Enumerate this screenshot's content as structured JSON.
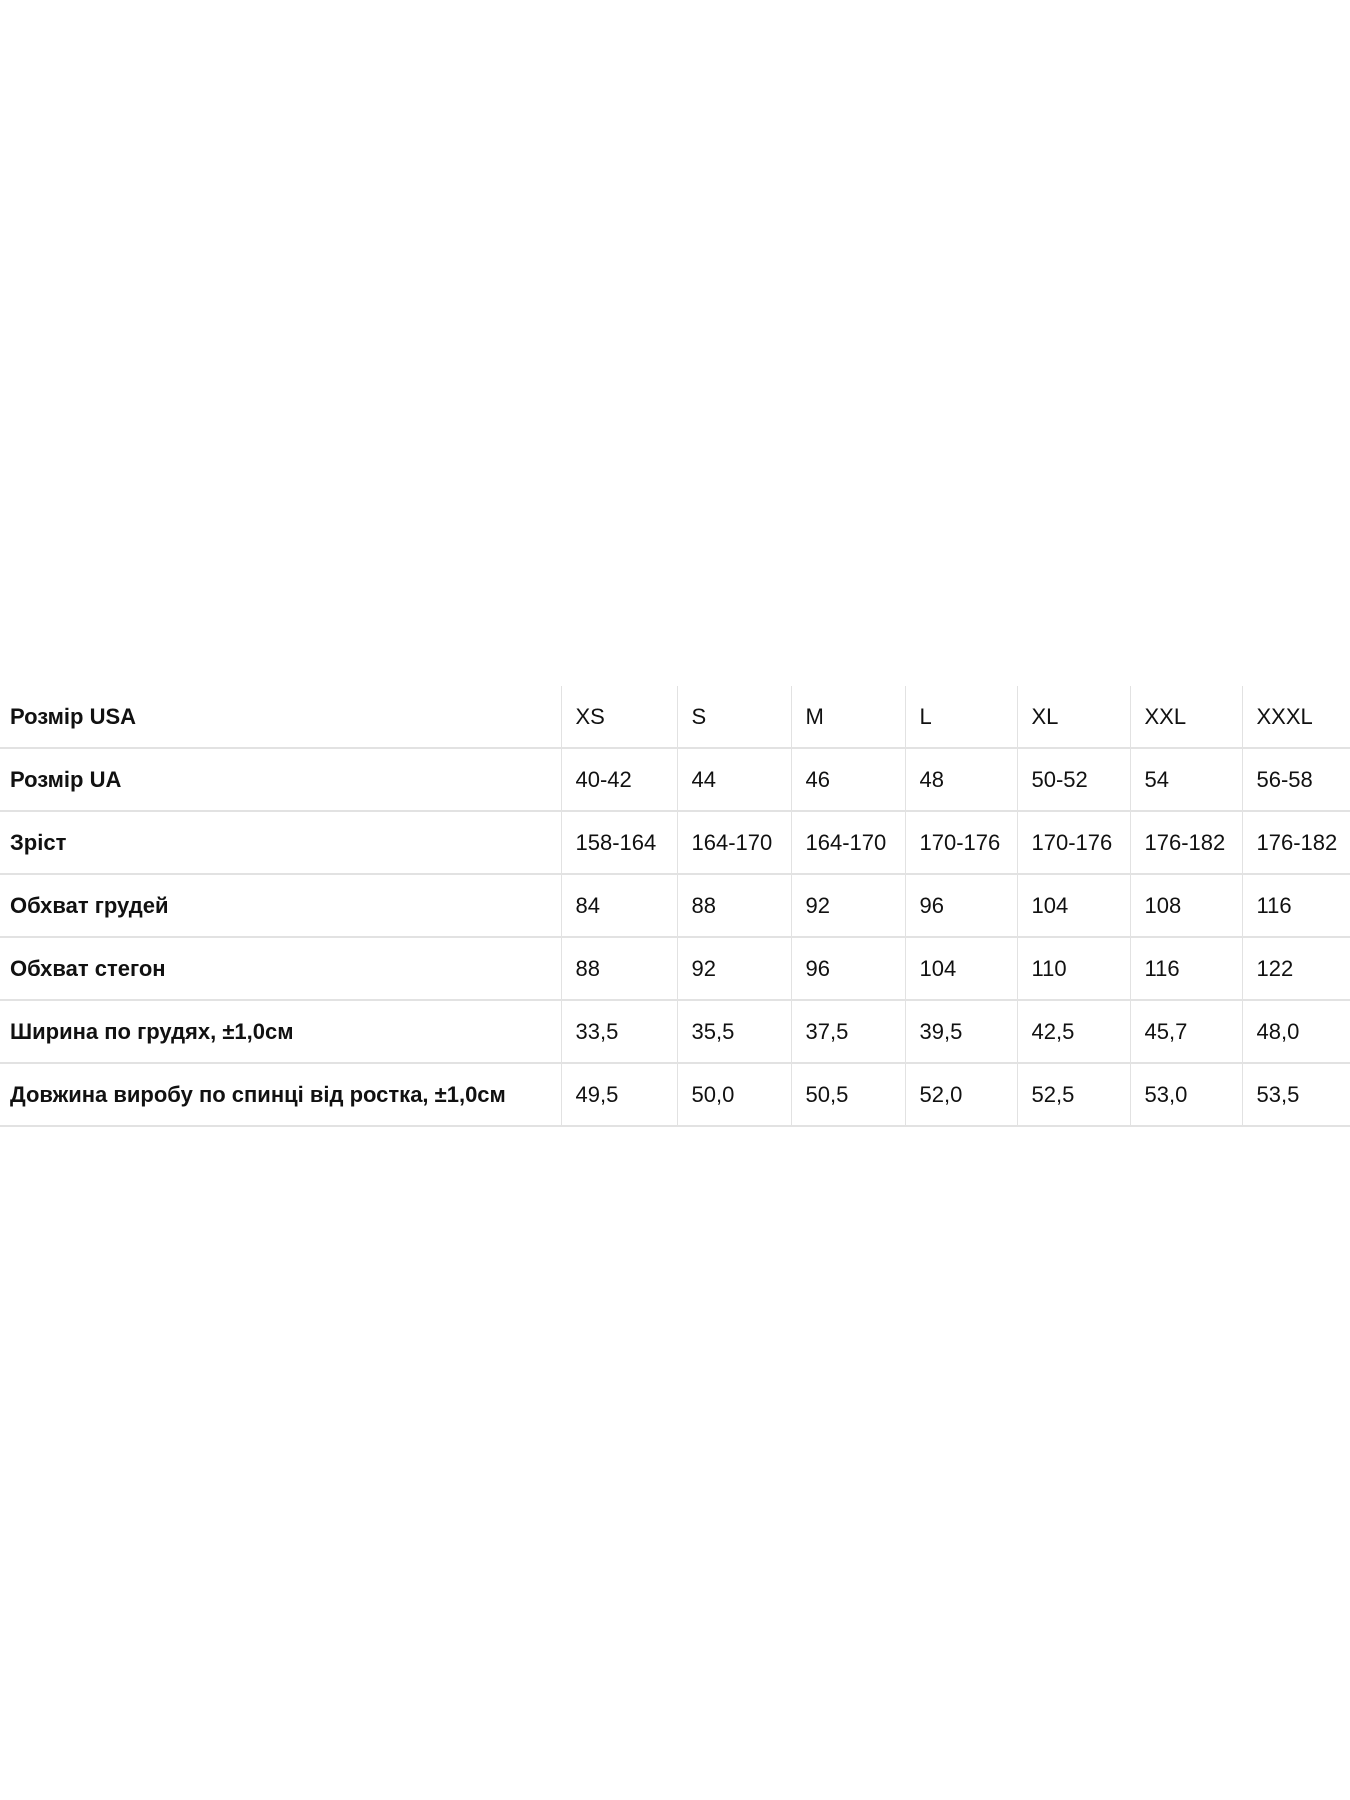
{
  "size_chart": {
    "rows": [
      {
        "label": "Розмір USA",
        "values": [
          "XS",
          "S",
          "M",
          "L",
          "XL",
          "XXL",
          "XXXL"
        ]
      },
      {
        "label": "Розмір UA",
        "values": [
          "40-42",
          "44",
          "46",
          "48",
          "50-52",
          "54",
          "56-58"
        ]
      },
      {
        "label": "Зріст",
        "values": [
          "158-164",
          "164-170",
          "164-170",
          "170-176",
          "170-176",
          "176-182",
          "176-182"
        ]
      },
      {
        "label": "Обхват грудей",
        "values": [
          "84",
          "88",
          "92",
          "96",
          "104",
          "108",
          "116"
        ]
      },
      {
        "label": "Обхват стегон",
        "values": [
          "88",
          "92",
          "96",
          "104",
          "110",
          "116",
          "122"
        ]
      },
      {
        "label": "Ширина по грудях, ±1,0см",
        "values": [
          "33,5",
          "35,5",
          "37,5",
          "39,5",
          "42,5",
          "45,7",
          "48,0"
        ]
      },
      {
        "label": "Довжина виробу по спинці від ростка, ±1,0см",
        "values": [
          "49,5",
          "50,0",
          "50,5",
          "52,0",
          "52,5",
          "53,0",
          "53,5"
        ]
      }
    ]
  }
}
